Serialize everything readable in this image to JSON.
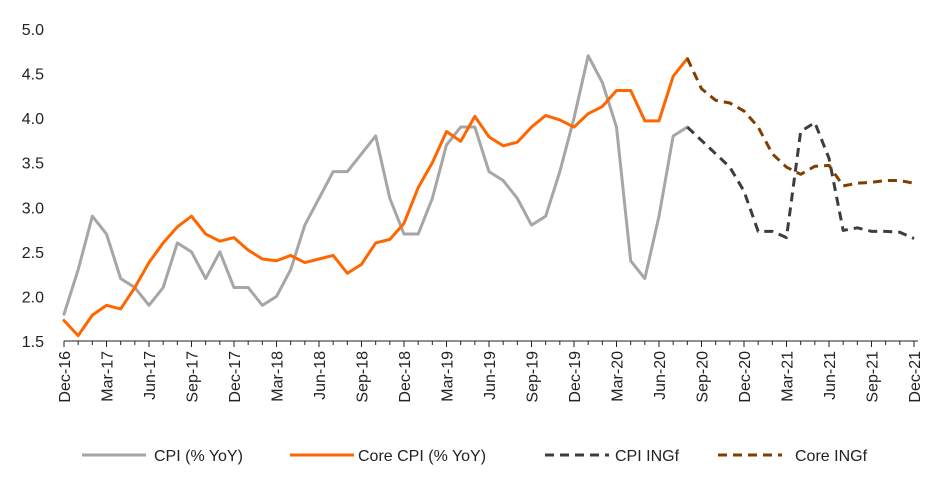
{
  "chart_data": {
    "type": "line",
    "title": "",
    "xlabel": "",
    "ylabel": "",
    "ylim": [
      1.5,
      5.0
    ],
    "yticks": [
      "1.5",
      "2.0",
      "2.5",
      "3.0",
      "3.5",
      "4.0",
      "4.5",
      "5.0"
    ],
    "xticks": [
      "Dec-16",
      "Mar-17",
      "Jun-17",
      "Sep-17",
      "Dec-17",
      "Mar-18",
      "Jun-18",
      "Sep-18",
      "Dec-18",
      "Mar-19",
      "Jun-19",
      "Sep-19",
      "Dec-19",
      "Mar-20",
      "Jun-20",
      "Sep-20",
      "Dec-20",
      "Mar-21",
      "Jun-21",
      "Sep-21",
      "Dec-21"
    ],
    "grid": false,
    "legend_position": "bottom",
    "series": [
      {
        "name": "CPI (% YoY)",
        "color": "#a6a6a6",
        "dash": "solid",
        "start_index": 0,
        "values": [
          1.8,
          2.3,
          2.9,
          2.7,
          2.2,
          2.1,
          1.9,
          2.1,
          2.6,
          2.5,
          2.2,
          2.5,
          2.1,
          2.1,
          1.9,
          2.0,
          2.3,
          2.8,
          3.1,
          3.4,
          3.4,
          3.6,
          3.8,
          3.1,
          2.7,
          2.7,
          3.1,
          3.7,
          3.9,
          3.9,
          3.4,
          3.3,
          3.1,
          2.8,
          2.9,
          3.4,
          4.0,
          4.7,
          4.4,
          3.9,
          2.4,
          2.2,
          2.9,
          3.8,
          3.9
        ]
      },
      {
        "name": "Core CPI (% YoY)",
        "color": "#ff6600",
        "dash": "solid",
        "start_index": 0,
        "values": [
          1.73,
          1.56,
          1.79,
          1.9,
          1.86,
          2.1,
          2.38,
          2.6,
          2.78,
          2.9,
          2.7,
          2.62,
          2.66,
          2.52,
          2.42,
          2.4,
          2.46,
          2.38,
          2.42,
          2.46,
          2.26,
          2.36,
          2.6,
          2.64,
          2.82,
          3.22,
          3.5,
          3.85,
          3.74,
          4.02,
          3.79,
          3.69,
          3.73,
          3.9,
          4.03,
          3.98,
          3.9,
          4.05,
          4.13,
          4.31,
          4.31,
          3.97,
          3.97,
          4.47,
          4.67
        ]
      },
      {
        "name": "CPI INGf",
        "color": "#3d3d3d",
        "dash": "dashed",
        "start_index": 44,
        "values": [
          3.9,
          3.75,
          3.6,
          3.45,
          3.18,
          2.73,
          2.73,
          2.66,
          3.85,
          3.95,
          3.55,
          2.74,
          2.77,
          2.73,
          2.73,
          2.72,
          2.65
        ]
      },
      {
        "name": "Core INGf",
        "color": "#7f3f00",
        "dash": "dashed",
        "start_index": 44,
        "values": [
          4.67,
          4.33,
          4.2,
          4.17,
          4.08,
          3.9,
          3.6,
          3.45,
          3.37,
          3.46,
          3.47,
          3.24,
          3.27,
          3.28,
          3.3,
          3.3,
          3.27
        ]
      }
    ]
  }
}
